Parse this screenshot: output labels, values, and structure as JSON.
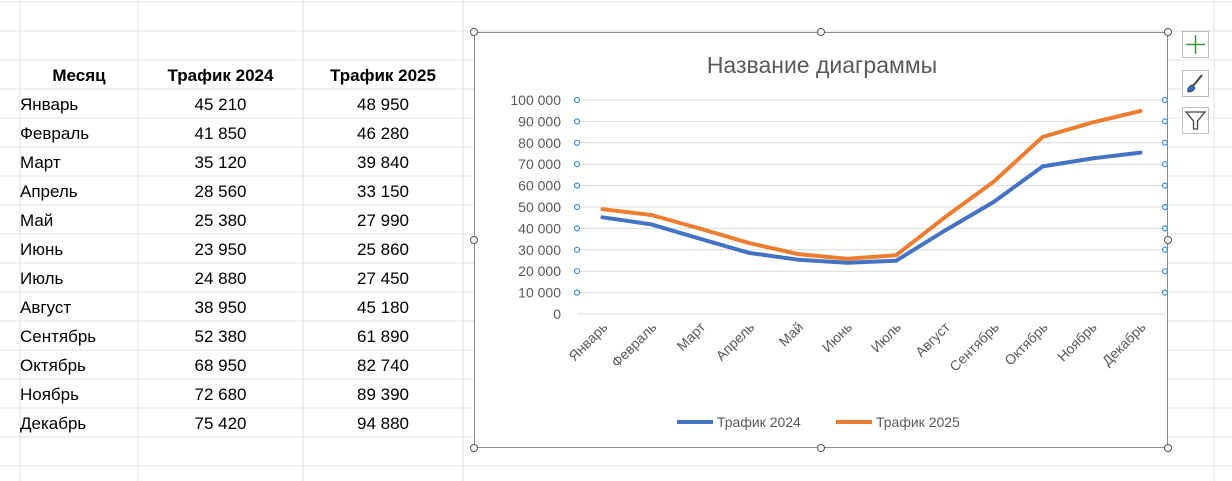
{
  "table": {
    "headers": [
      "Месяц",
      "Трафик 2024",
      "Трафик 2025"
    ],
    "rows": [
      [
        "Январь",
        "45 210",
        "48 950"
      ],
      [
        "Февраль",
        "41 850",
        "46 280"
      ],
      [
        "Март",
        "35 120",
        "39 840"
      ],
      [
        "Апрель",
        "28 560",
        "33 150"
      ],
      [
        "Май",
        "25 380",
        "27 990"
      ],
      [
        "Июнь",
        "23 950",
        "25 860"
      ],
      [
        "Июль",
        "24 880",
        "27 450"
      ],
      [
        "Август",
        "38 950",
        "45 180"
      ],
      [
        "Сентябрь",
        "52 380",
        "61 890"
      ],
      [
        "Октябрь",
        "68 950",
        "82 740"
      ],
      [
        "Ноябрь",
        "72 680",
        "89 390"
      ],
      [
        "Декабрь",
        "75 420",
        "94 880"
      ]
    ]
  },
  "chart_data": {
    "type": "line",
    "title": "Название диаграммы",
    "categories": [
      "Январь",
      "Февраль",
      "Март",
      "Апрель",
      "Май",
      "Июнь",
      "Июль",
      "Август",
      "Сентябрь",
      "Октябрь",
      "Ноябрь",
      "Декабрь"
    ],
    "series": [
      {
        "name": "Трафик 2024",
        "color": "#4472C4",
        "values": [
          45210,
          41850,
          35120,
          28560,
          25380,
          23950,
          24880,
          38950,
          52380,
          68950,
          72680,
          75420
        ]
      },
      {
        "name": "Трафик 2025",
        "color": "#ED7D31",
        "values": [
          48950,
          46280,
          39840,
          33150,
          27990,
          25860,
          27450,
          45180,
          61890,
          82740,
          89390,
          94880
        ]
      }
    ],
    "ylim": [
      0,
      100000
    ],
    "yticks": [
      "0",
      "10 000",
      "20 000",
      "30 000",
      "40 000",
      "50 000",
      "60 000",
      "70 000",
      "80 000",
      "90 000",
      "100 000"
    ],
    "grid": true,
    "legend": "bottom"
  },
  "icons": {
    "add": "plus-icon",
    "style": "brush-icon",
    "filter": "filter-icon"
  }
}
